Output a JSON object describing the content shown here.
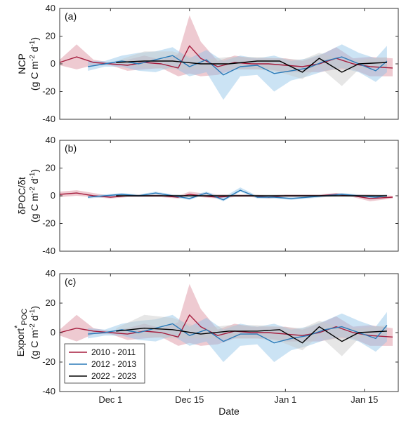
{
  "figure": {
    "xlabel": "Date",
    "x_tick_labels": [
      "Dec 1",
      "Dec 15",
      "Jan 1",
      "Jan 15"
    ],
    "y_tick_labels": [
      "40",
      "20",
      "0",
      "-20",
      "-40"
    ],
    "legend_labels": [
      "2010 - 2011",
      "2012 - 2013",
      "2022 - 2023"
    ],
    "series_colors": [
      "#a51c3d",
      "#2a7ab8",
      "#000000"
    ],
    "band_colors": [
      "#d98a99",
      "#8cc1e6",
      "#c8c8c8"
    ],
    "panels": [
      {
        "letter": "(a)",
        "ylabel_line1": "NCP",
        "ylabel_line2": "(g C m",
        "ylabel_sup1": "-2",
        "ylabel_mid": " d",
        "ylabel_sup2": "-1",
        "ylabel_end": ")"
      },
      {
        "letter": "(b)",
        "ylabel_line1": "δPOC/δt",
        "ylabel_line2": "(g C m",
        "ylabel_sup1": "-2",
        "ylabel_mid": " d",
        "ylabel_sup2": "-1",
        "ylabel_end": ")"
      },
      {
        "letter": "(c)",
        "ylabel_line1": "Export",
        "ylabel_line1_sup": "*",
        "ylabel_line1_sub": "POC",
        "ylabel_line2": "(g C m",
        "ylabel_sup1": "-2",
        "ylabel_mid": " d",
        "ylabel_sup2": "-1",
        "ylabel_end": ")"
      }
    ]
  },
  "chart_data": [
    {
      "type": "line",
      "panel": "(a)",
      "xlabel": "",
      "ylabel": "NCP (g C m-2 d-1)",
      "x_unit": "days relative to Dec 1 (Dec 1 = 0, Dec 15 = 14, Jan 1 = 31, Jan 15 = 45)",
      "xlim": [
        -9,
        51
      ],
      "ylim": [
        -40,
        40
      ],
      "series": [
        {
          "name": "2010 - 2011",
          "x": [
            -9,
            -6,
            -3,
            0,
            3,
            6,
            9,
            12,
            14,
            16,
            19,
            22,
            25,
            28,
            31,
            34,
            37,
            40,
            43,
            46,
            50
          ],
          "y": [
            1,
            5,
            1,
            0,
            -1,
            1,
            0,
            -3,
            13,
            4,
            -2,
            1,
            0,
            0,
            -1,
            -2,
            0,
            4,
            0,
            -2,
            -3
          ],
          "upper": [
            3,
            14,
            3,
            1,
            3,
            6,
            3,
            7,
            35,
            16,
            2,
            6,
            4,
            4,
            4,
            2,
            6,
            12,
            4,
            5,
            4
          ],
          "lower": [
            -1,
            -4,
            -1,
            -1,
            -5,
            -4,
            -3,
            -9,
            -7,
            -9,
            -8,
            -4,
            -4,
            -4,
            -6,
            -6,
            -6,
            -4,
            -4,
            -9,
            -9
          ]
        },
        {
          "name": "2012 - 2013",
          "x": [
            -4,
            -1,
            2,
            5,
            8,
            11,
            14,
            17,
            20,
            23,
            26,
            29,
            32,
            35,
            38,
            41,
            44,
            47,
            49
          ],
          "y": [
            -2,
            0,
            2,
            0,
            3,
            6,
            -2,
            3,
            -8,
            -2,
            -1,
            -7,
            -5,
            -3,
            2,
            5,
            0,
            -5,
            2
          ],
          "upper": [
            2,
            2,
            6,
            8,
            9,
            12,
            4,
            10,
            2,
            6,
            4,
            6,
            2,
            4,
            8,
            14,
            8,
            4,
            13
          ],
          "lower": [
            -5,
            -2,
            -2,
            -5,
            -6,
            -2,
            -9,
            -6,
            -26,
            -9,
            -8,
            -20,
            -12,
            -9,
            -5,
            -3,
            -6,
            -13,
            -6
          ]
        },
        {
          "name": "2022 - 2023",
          "x": [
            1,
            6,
            11,
            16,
            21,
            26,
            30,
            34,
            37,
            41,
            44,
            49
          ],
          "y": [
            1,
            2,
            2,
            0,
            0,
            2,
            2,
            -6,
            4,
            -6,
            0,
            1
          ],
          "upper": [
            2,
            9,
            9,
            3,
            5,
            5,
            4,
            3,
            8,
            3,
            3,
            5
          ],
          "lower": [
            0,
            -3,
            -4,
            -4,
            -4,
            -4,
            -6,
            -11,
            -2,
            -16,
            -4,
            -2
          ]
        }
      ]
    },
    {
      "type": "line",
      "panel": "(b)",
      "xlabel": "",
      "ylabel": "δPOC/δt (g C m-2 d-1)",
      "x_unit": "days relative to Dec 1 (Dec 1 = 0, Dec 15 = 14, Jan 1 = 31, Jan 15 = 45)",
      "xlim": [
        -9,
        51
      ],
      "ylim": [
        -40,
        40
      ],
      "series": [
        {
          "name": "2010 - 2011",
          "x": [
            -9,
            -6,
            -3,
            0,
            3,
            6,
            9,
            12,
            14,
            16,
            19,
            22,
            25,
            28,
            31,
            34,
            37,
            40,
            43,
            46,
            50
          ],
          "y": [
            1,
            2,
            0,
            -1,
            0,
            0,
            0,
            -1,
            1,
            0,
            -1,
            0,
            0,
            -1,
            0,
            0,
            0,
            1,
            0,
            -2,
            -1
          ],
          "upper": [
            3,
            4,
            2,
            0,
            1,
            1,
            1,
            0,
            3,
            2,
            1,
            1,
            1,
            0,
            1,
            1,
            1,
            2,
            1,
            1,
            0
          ],
          "lower": [
            -1,
            0,
            -1,
            -2,
            -1,
            -1,
            -1,
            -2,
            0,
            -1,
            -2,
            -1,
            -1,
            -2,
            -1,
            -1,
            -1,
            0,
            -1,
            -4,
            -2
          ]
        },
        {
          "name": "2012 - 2013",
          "x": [
            -4,
            -1,
            2,
            5,
            8,
            11,
            14,
            17,
            20,
            23,
            26,
            29,
            32,
            35,
            38,
            41,
            44,
            47,
            49
          ],
          "y": [
            -1,
            0,
            1,
            0,
            2,
            0,
            -2,
            2,
            -3,
            4,
            -1,
            -1,
            -2,
            -1,
            0,
            1,
            0,
            -1,
            0
          ],
          "upper": [
            0,
            1,
            2,
            1,
            3,
            1,
            0,
            3,
            -1,
            6,
            0,
            0,
            -1,
            0,
            1,
            2,
            1,
            0,
            1
          ],
          "lower": [
            -2,
            -1,
            0,
            -1,
            1,
            -1,
            -3,
            1,
            -4,
            3,
            -2,
            -2,
            -3,
            -2,
            -1,
            0,
            -1,
            -2,
            -1
          ]
        },
        {
          "name": "2022 - 2023",
          "x": [
            1,
            6,
            11,
            16,
            21,
            26,
            30,
            34,
            37,
            41,
            44,
            49
          ],
          "y": [
            0,
            0,
            0,
            0,
            0,
            0,
            0,
            0,
            0,
            0,
            0,
            0
          ],
          "upper": [
            1,
            1,
            1,
            1,
            1,
            1,
            1,
            1,
            1,
            1,
            1,
            1
          ],
          "lower": [
            -1,
            -1,
            -1,
            -1,
            -1,
            -1,
            -1,
            -1,
            -1,
            -1,
            -1,
            -1
          ]
        }
      ]
    },
    {
      "type": "line",
      "panel": "(c)",
      "xlabel": "Date",
      "ylabel": "Export*POC (g C m-2 d-1)",
      "x_unit": "days relative to Dec 1 (Dec 1 = 0, Dec 15 = 14, Jan 1 = 31, Jan 15 = 45)",
      "xlim": [
        -9,
        51
      ],
      "ylim": [
        -40,
        40
      ],
      "series": [
        {
          "name": "2010 - 2011",
          "x": [
            -9,
            -6,
            -3,
            0,
            3,
            6,
            9,
            12,
            14,
            16,
            19,
            22,
            25,
            28,
            31,
            34,
            37,
            40,
            43,
            46,
            50
          ],
          "y": [
            0,
            3,
            1,
            0,
            -1,
            1,
            0,
            -3,
            12,
            4,
            -2,
            1,
            0,
            0,
            -1,
            -2,
            0,
            4,
            0,
            -2,
            -3
          ],
          "upper": [
            2,
            12,
            3,
            1,
            3,
            6,
            3,
            7,
            33,
            16,
            2,
            6,
            4,
            4,
            4,
            2,
            6,
            11,
            4,
            5,
            3
          ],
          "lower": [
            -2,
            -6,
            -1,
            -1,
            -5,
            -4,
            -3,
            -9,
            -7,
            -9,
            -8,
            -4,
            -4,
            -4,
            -6,
            -6,
            -6,
            -4,
            -4,
            -9,
            -9
          ]
        },
        {
          "name": "2012 - 2013",
          "x": [
            -4,
            -1,
            2,
            5,
            8,
            11,
            14,
            17,
            20,
            23,
            26,
            29,
            32,
            35,
            38,
            41,
            44,
            47,
            49
          ],
          "y": [
            -1,
            0,
            2,
            0,
            3,
            6,
            -2,
            2,
            -6,
            -1,
            -1,
            -7,
            -4,
            -2,
            2,
            4,
            0,
            -4,
            5
          ],
          "upper": [
            3,
            2,
            6,
            8,
            9,
            12,
            4,
            10,
            2,
            6,
            4,
            6,
            2,
            4,
            8,
            13,
            8,
            4,
            14
          ],
          "lower": [
            -4,
            -2,
            -2,
            -5,
            -6,
            -2,
            -9,
            -6,
            -20,
            -9,
            -8,
            -20,
            -12,
            -9,
            -5,
            -3,
            -6,
            -13,
            -6
          ]
        },
        {
          "name": "2022 - 2023",
          "x": [
            1,
            6,
            11,
            16,
            21,
            26,
            30,
            34,
            37,
            41,
            44,
            49
          ],
          "y": [
            1,
            3,
            2,
            -1,
            1,
            1,
            2,
            -7,
            4,
            -6,
            0,
            1
          ],
          "upper": [
            3,
            12,
            10,
            3,
            5,
            5,
            4,
            3,
            8,
            3,
            3,
            5
          ],
          "lower": [
            -1,
            -3,
            -4,
            -4,
            -4,
            -4,
            -6,
            -12,
            -2,
            -16,
            -4,
            -2
          ]
        }
      ]
    }
  ]
}
